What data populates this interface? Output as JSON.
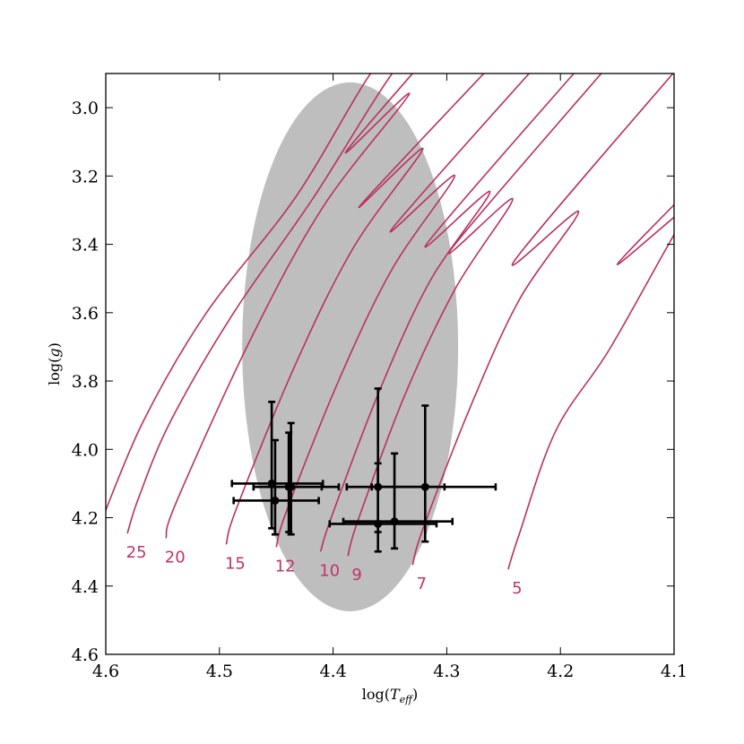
{
  "chart_data": {
    "type": "scatter",
    "xlabel": "log(T_eff)",
    "ylabel": "log(g)",
    "xlim": [
      4.6,
      4.1
    ],
    "ylim": [
      2.9,
      4.6
    ],
    "x_inverted": true,
    "y_inverted": true,
    "grid": false,
    "xticks": [
      "4.6",
      "4.5",
      "4.4",
      "4.3",
      "4.2",
      "4.1"
    ],
    "yticks": [
      "3.0",
      "3.2",
      "3.4",
      "3.6",
      "3.8",
      "4.0",
      "4.2",
      "4.4",
      "4.6"
    ],
    "colors": {
      "tracks": "#b8325f",
      "track_labels": "#c0336a",
      "region": "#bebebe",
      "points": "#000000"
    },
    "region_ellipse": {
      "center": [
        4.385,
        3.7
      ],
      "semi_axis_logT": 0.095,
      "semi_axis_logg": 0.774
    },
    "tracks": [
      {
        "label": "",
        "points": [
          [
            4.605,
            4.22
          ],
          [
            4.567,
            3.918
          ],
          [
            4.512,
            3.603
          ],
          [
            4.433,
            3.262
          ],
          [
            4.367,
            2.9
          ],
          [
            4.34,
            2.83
          ]
        ]
      },
      {
        "label": "25",
        "points": [
          [
            4.581,
            4.246
          ],
          [
            4.571,
            4.141
          ],
          [
            4.543,
            3.918
          ],
          [
            4.488,
            3.603
          ],
          [
            4.417,
            3.262
          ],
          [
            4.348,
            2.9
          ],
          [
            4.32,
            2.83
          ]
        ]
      },
      {
        "label": "20",
        "points": [
          [
            4.547,
            4.26
          ],
          [
            4.538,
            4.155
          ],
          [
            4.472,
            3.674
          ],
          [
            4.408,
            3.286
          ],
          [
            4.333,
            2.96
          ],
          [
            4.389,
            3.131
          ],
          [
            4.315,
            2.842
          ]
        ]
      },
      {
        "label": "15",
        "points": [
          [
            4.494,
            4.278
          ],
          [
            4.485,
            4.173
          ],
          [
            4.434,
            3.758
          ],
          [
            4.382,
            3.409
          ],
          [
            4.321,
            3.12
          ],
          [
            4.376,
            3.286
          ],
          [
            4.251,
            2.842
          ]
        ]
      },
      {
        "label": "12",
        "points": [
          [
            4.45,
            4.286
          ],
          [
            4.441,
            4.181
          ],
          [
            4.395,
            3.798
          ],
          [
            4.348,
            3.472
          ],
          [
            4.293,
            3.199
          ],
          [
            4.348,
            3.354
          ],
          [
            4.212,
            2.842
          ]
        ]
      },
      {
        "label": "10",
        "points": [
          [
            4.411,
            4.299
          ],
          [
            4.401,
            4.194
          ],
          [
            4.359,
            3.827
          ],
          [
            4.315,
            3.509
          ],
          [
            4.262,
            3.246
          ],
          [
            4.317,
            3.396
          ],
          [
            4.173,
            2.842
          ]
        ]
      },
      {
        "label": "9",
        "points": [
          [
            4.387,
            4.312
          ],
          [
            4.378,
            4.207
          ],
          [
            4.337,
            3.842
          ],
          [
            4.292,
            3.527
          ],
          [
            4.242,
            3.267
          ],
          [
            4.296,
            3.414
          ],
          [
            4.149,
            2.842
          ]
        ]
      },
      {
        "label": "7",
        "points": [
          [
            4.33,
            4.338
          ],
          [
            4.321,
            4.233
          ],
          [
            4.279,
            3.874
          ],
          [
            4.236,
            3.561
          ],
          [
            4.184,
            3.304
          ],
          [
            4.24,
            3.446
          ],
          [
            4.086,
            2.842
          ]
        ]
      },
      {
        "label": "5",
        "points": [
          [
            4.246,
            4.351
          ],
          [
            4.236,
            4.246
          ],
          [
            4.204,
            3.945
          ],
          [
            4.157,
            3.708
          ],
          [
            4.1,
            3.372
          ],
          [
            4.078,
            3.262
          ],
          [
            4.15,
            3.459
          ],
          [
            4.078,
            3.21
          ]
        ]
      }
    ],
    "points": [
      {
        "x": 4.454,
        "y": 4.1,
        "x_range": [
          4.489,
          4.409
        ],
        "y_range": [
          3.861,
          4.231
        ]
      },
      {
        "x": 4.437,
        "y": 4.11,
        "x_range": [
          4.47,
          4.395
        ],
        "y_range": [
          3.923,
          4.249
        ]
      },
      {
        "x": 4.439,
        "y": 4.11,
        "x_range": [
          4.47,
          4.41
        ],
        "y_range": [
          3.951,
          4.242
        ]
      },
      {
        "x": 4.451,
        "y": 4.15,
        "x_range": [
          4.4875,
          4.4126
        ],
        "y_range": [
          3.973,
          4.249
        ]
      },
      {
        "x": 4.3605,
        "y": 4.11,
        "x_range": [
          4.388,
          4.302
        ],
        "y_range": [
          3.822,
          4.242
        ]
      },
      {
        "x": 4.319,
        "y": 4.11,
        "x_range": [
          4.366,
          4.257
        ],
        "y_range": [
          3.872,
          4.27
        ]
      },
      {
        "x": 4.3605,
        "y": 4.218,
        "x_range": [
          4.403,
          4.309
        ],
        "y_range": [
          4.041,
          4.299
        ]
      },
      {
        "x": 4.346,
        "y": 4.211,
        "x_range": [
          4.391,
          4.295
        ],
        "y_range": [
          4.012,
          4.29
        ]
      }
    ]
  }
}
